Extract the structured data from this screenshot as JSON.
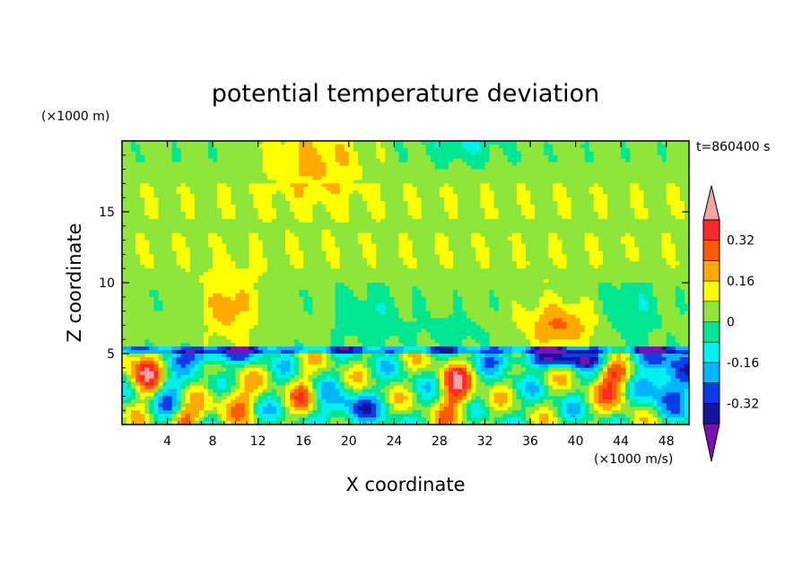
{
  "chart_data": {
    "type": "heatmap",
    "title": "potential temperature deviation",
    "xlabel": "X coordinate",
    "ylabel": "Z coordinate",
    "x_unit": "(×1000 m/s)",
    "y_unit": "(×1000 m)",
    "time_label": "t=860400 s",
    "xlim": [
      0,
      50
    ],
    "ylim": [
      0,
      20
    ],
    "x_ticks": [
      4,
      8,
      12,
      16,
      20,
      24,
      28,
      32,
      36,
      40,
      44,
      48
    ],
    "y_ticks": [
      5,
      10,
      15
    ],
    "grid": false,
    "colorbar": {
      "levels": [
        -0.4,
        -0.32,
        -0.24,
        -0.16,
        -0.08,
        0,
        0.08,
        0.16,
        0.24,
        0.32,
        0.4
      ],
      "tick_labels": [
        "0.32",
        "0.16",
        "0",
        "-0.16",
        "-0.32"
      ],
      "tick_values": [
        0.32,
        0.16,
        0,
        -0.16,
        -0.32
      ],
      "colors": [
        "#7a12b0",
        "#16149c",
        "#0a3ce8",
        "#00b4ff",
        "#00f0f0",
        "#00e692",
        "#8ee63a",
        "#ffff00",
        "#ffaa00",
        "#ff5a00",
        "#ff2828",
        "#f4a3a3"
      ]
    }
  }
}
